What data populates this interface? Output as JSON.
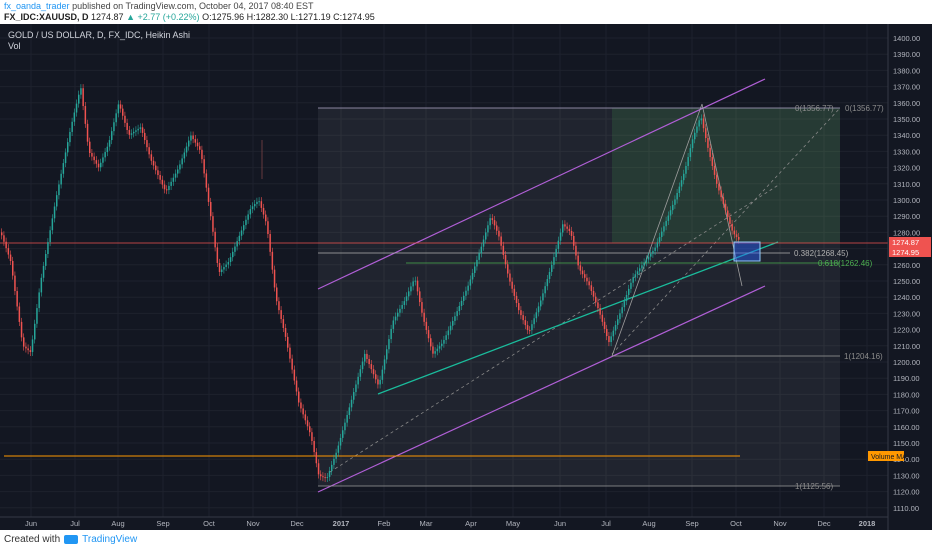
{
  "header": {
    "username": "fx_oanda_trader",
    "published_text": " published on TradingView.com, October 04, 2017 08:40 EST",
    "symbol": "FX_IDC:XAUUSD, D",
    "price": "1274.87",
    "change": "▲ +2.77 (+0.22%)",
    "ohlc": "O:1275.96 H:1282.30 L:1271.19 C:1274.95"
  },
  "legend": {
    "title": "GOLD / US DOLLAR, D, FX_IDC, Heikin Ashi",
    "indicator": "Vol"
  },
  "price_axis": {
    "ticks": [
      "1400.00",
      "1390.00",
      "1380.00",
      "1370.00",
      "1360.00",
      "1350.00",
      "1340.00",
      "1330.00",
      "1320.00",
      "1310.00",
      "1300.00",
      "1290.00",
      "1280.00",
      "1270.00",
      "1260.00",
      "1250.00",
      "1240.00",
      "1230.00",
      "1220.00",
      "1210.00",
      "1200.00",
      "1190.00",
      "1180.00",
      "1170.00",
      "1160.00",
      "1150.00",
      "1140.00",
      "1130.00",
      "1120.00",
      "1110.00"
    ],
    "current_price_label": "1274.87",
    "close_label": "1274.95",
    "volume_ma_label": "Volume MA"
  },
  "time_axis": {
    "ticks": [
      "Jun",
      "Jul",
      "Aug",
      "Sep",
      "Oct",
      "Nov",
      "Dec",
      "2017",
      "Feb",
      "Mar",
      "Apr",
      "May",
      "Jun",
      "Jul",
      "Aug",
      "Sep",
      "Oct",
      "Nov",
      "Dec",
      "2018"
    ]
  },
  "annotations": {
    "fib_0": "0(1356.77)",
    "fib_0_right": "0(1356.77)",
    "fib_382": "0.382(1268.45)",
    "fib_618": "0.618(1262.46)",
    "fib_1_lower": "1(1204.16)",
    "fib_1_bottom": "1(1125.56)"
  },
  "footer": {
    "created_with": "Created with",
    "brand": "TradingView"
  },
  "colors": {
    "background": "#131722",
    "up": "#26a69a",
    "down": "#ef5350",
    "channel": "#b05fd6",
    "trendline": "#1abc9c",
    "fib_green": "#4caf50",
    "price_line": "#ef5350",
    "orange_line": "#ff9800"
  }
}
